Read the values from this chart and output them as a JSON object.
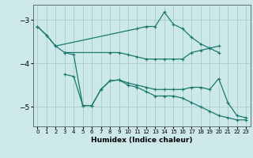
{
  "xlabel": "Humidex (Indice chaleur)",
  "bg_color": "#cce8e8",
  "grid_color": "#aacccc",
  "line_color": "#1a7a6e",
  "xlim": [
    -0.5,
    23.5
  ],
  "ylim": [
    -5.45,
    -2.65
  ],
  "yticks": [
    -5,
    -4,
    -3
  ],
  "xticks": [
    0,
    1,
    2,
    3,
    4,
    5,
    6,
    7,
    8,
    9,
    10,
    11,
    12,
    13,
    14,
    15,
    16,
    17,
    18,
    19,
    20,
    21,
    22,
    23
  ],
  "line1_x": [
    0,
    1,
    2,
    11,
    12,
    13,
    14,
    15,
    16,
    17,
    18,
    19,
    20
  ],
  "line1_y": [
    -3.15,
    -3.35,
    -3.6,
    -3.2,
    -3.15,
    -3.15,
    -2.82,
    -3.1,
    -3.2,
    -3.4,
    -3.55,
    -3.65,
    -3.75
  ],
  "line2_x": [
    3,
    8,
    9,
    10,
    11,
    12,
    13,
    14,
    15,
    16,
    17,
    18,
    19,
    20
  ],
  "line2_y": [
    -3.75,
    -3.75,
    -3.75,
    -3.8,
    -3.85,
    -3.9,
    -3.9,
    -3.9,
    -3.9,
    -3.9,
    -3.75,
    -3.7,
    -3.65,
    -3.6
  ],
  "line3_x": [
    3,
    4,
    5,
    6,
    7,
    8,
    9,
    10,
    11,
    12,
    13,
    14,
    15,
    16,
    17,
    18,
    19,
    20,
    21,
    22,
    23
  ],
  "line3_y": [
    -4.25,
    -4.3,
    -4.97,
    -4.97,
    -4.6,
    -4.4,
    -4.38,
    -4.45,
    -4.5,
    -4.55,
    -4.6,
    -4.6,
    -4.6,
    -4.6,
    -4.55,
    -4.55,
    -4.6,
    -4.35,
    -4.9,
    -5.2,
    -5.25
  ],
  "line4_x": [
    0,
    1,
    2,
    3,
    4,
    5,
    6,
    7,
    8,
    9,
    10,
    11,
    12,
    13,
    14,
    15,
    16,
    17,
    18,
    19,
    20,
    21,
    22,
    23
  ],
  "line4_y": [
    -3.15,
    -3.35,
    -3.6,
    -3.75,
    -3.8,
    -4.97,
    -4.97,
    -4.6,
    -4.4,
    -4.38,
    -4.5,
    -4.55,
    -4.65,
    -4.75,
    -4.75,
    -4.75,
    -4.8,
    -4.9,
    -5.0,
    -5.1,
    -5.2,
    -5.25,
    -5.3,
    -5.3
  ]
}
